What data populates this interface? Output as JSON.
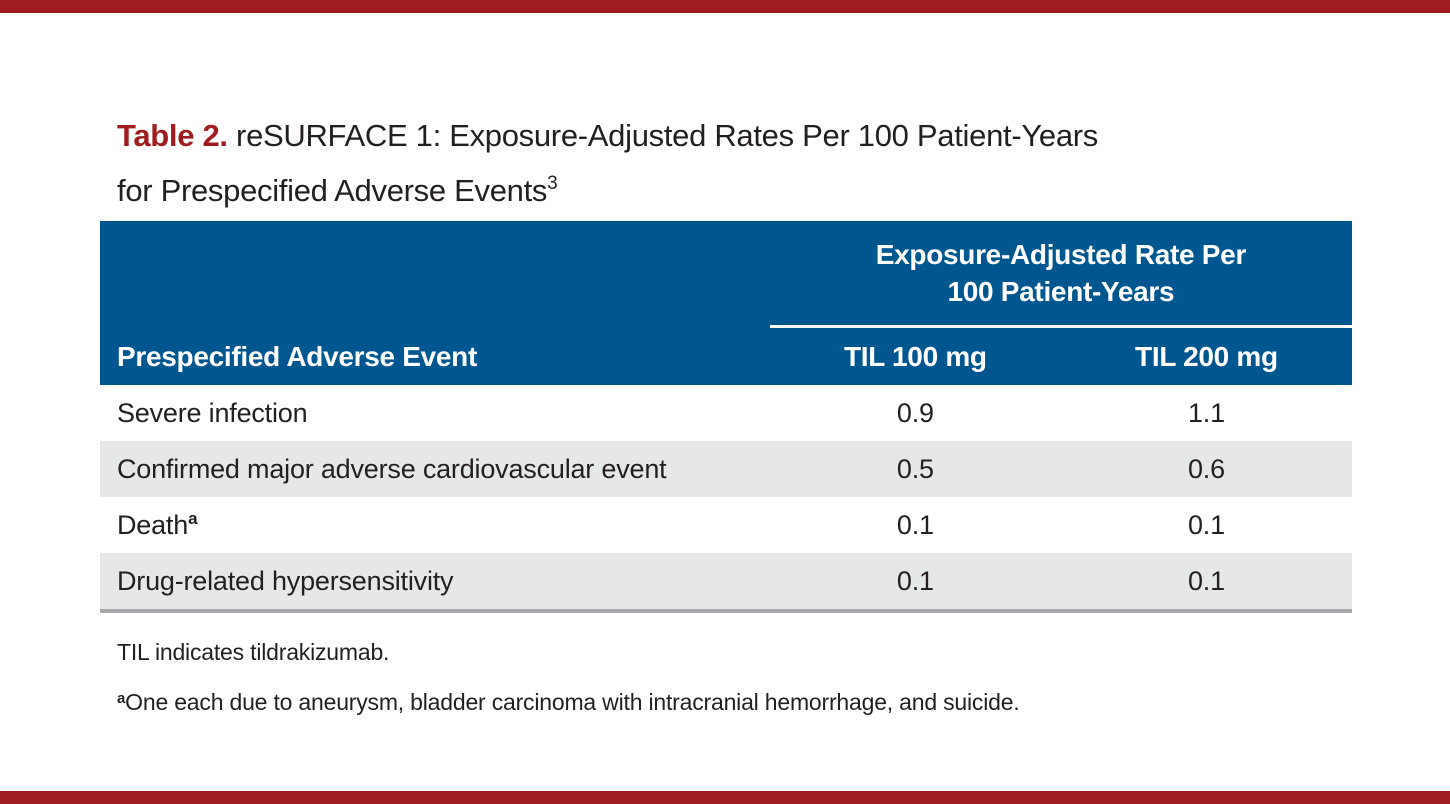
{
  "page": {
    "accent_red": "#9f1d21",
    "header_blue": "#00578f",
    "alt_row_gray": "#e6e7e8",
    "bottom_border_gray": "#a7a9ac"
  },
  "title": {
    "label": "Table 2.",
    "text_line1": " reSURFACE 1: Exposure-Adjusted Rates Per 100 Patient-Years",
    "text_line2": "for Prespecified Adverse Events",
    "superscript": "3"
  },
  "table": {
    "group_header": {
      "line1": "Exposure-Adjusted Rate Per",
      "line2": "100 Patient-Years"
    },
    "columns": {
      "event": "Prespecified Adverse Event",
      "til100": "TIL 100 mg",
      "til200": "TIL 200 mg"
    },
    "rows": [
      {
        "label": "Severe infection",
        "sup": "",
        "til100": "0.9",
        "til200": "1.1"
      },
      {
        "label": "Confirmed major adverse cardiovascular event",
        "sup": "",
        "til100": "0.5",
        "til200": "0.6"
      },
      {
        "label": "Death",
        "sup": "a",
        "til100": "0.1",
        "til200": "0.1"
      },
      {
        "label": "Drug-related hypersensitivity",
        "sup": "",
        "til100": "0.1",
        "til200": "0.1"
      }
    ]
  },
  "footnotes": {
    "abbreviation": "TIL indicates tildrakizumab.",
    "note_a_marker": "a",
    "note_a_text": "One each due to aneurysm, bladder carcinoma with intracranial hemorrhage, and suicide."
  }
}
